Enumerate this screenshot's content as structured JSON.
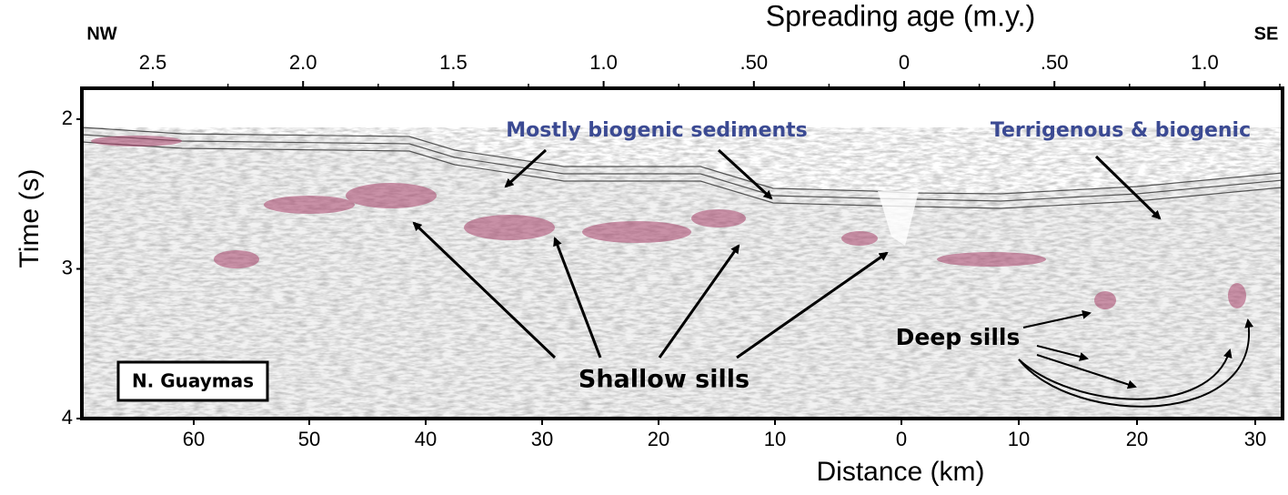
{
  "header": {
    "title": "Spreading age (m.y.)",
    "left": "NW",
    "right": "SE"
  },
  "top_axis": {
    "ticks": [
      "2.5",
      "2.0",
      "1.5",
      "1.0",
      ".50",
      "0",
      ".50",
      "1.0"
    ]
  },
  "left_axis": {
    "label": "Time (s)",
    "ticks": [
      "2",
      "3",
      "4"
    ]
  },
  "bottom_axis": {
    "label": "Distance (km)",
    "ticks": [
      "60",
      "50",
      "40",
      "30",
      "20",
      "10",
      "0",
      "10",
      "20",
      "30"
    ]
  },
  "annotations": {
    "sediments_left": "Mostly biogenic sediments",
    "sediments_right": "Terrigenous & biogenic",
    "shallow": "Shallow sills",
    "deep": "Deep sills",
    "location": "N. Guaymas"
  }
}
